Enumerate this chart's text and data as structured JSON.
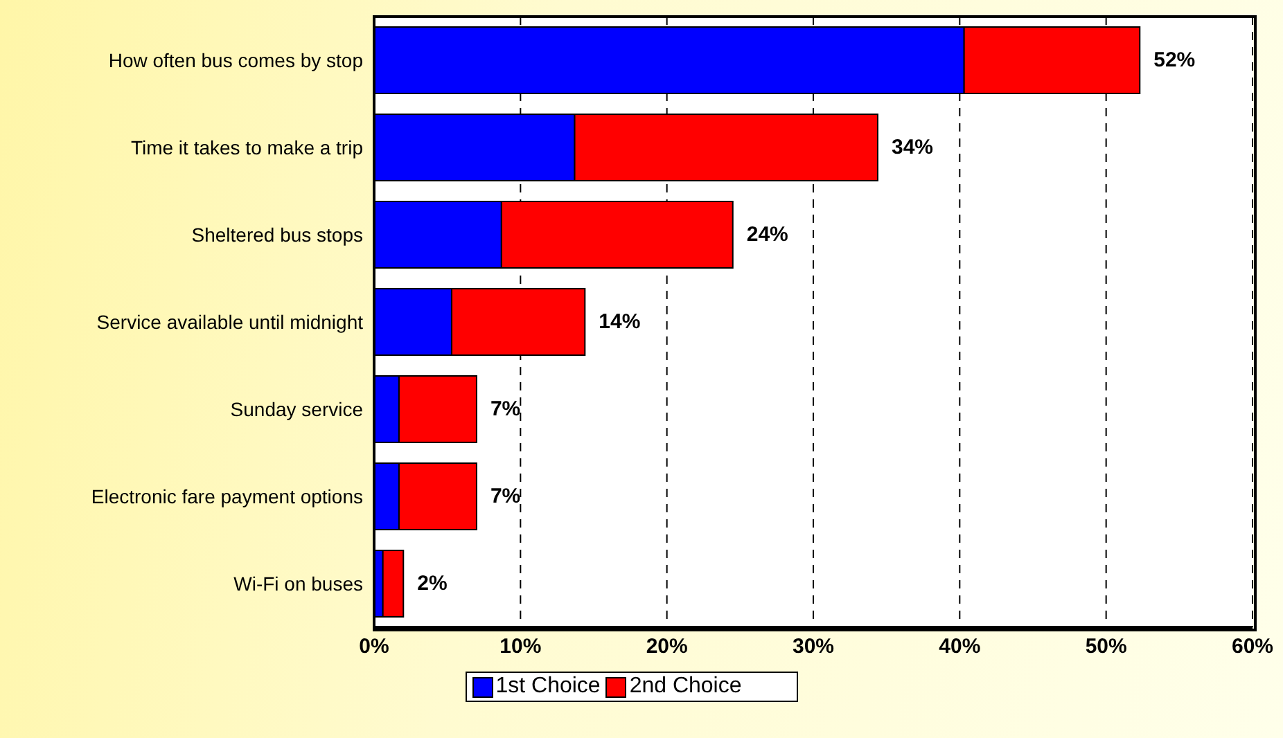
{
  "chart_data": {
    "type": "bar",
    "orientation": "horizontal",
    "stacked": true,
    "categories": [
      "How often bus comes by stop",
      "Time it takes to make a trip",
      "Sheltered bus stops",
      "Service available until midnight",
      "Sunday service",
      "Electronic fare payment options",
      "Wi-Fi on buses"
    ],
    "series": [
      {
        "name": "1st Choice",
        "color": "#0000ff",
        "values": [
          40.3,
          13.7,
          8.7,
          5.3,
          1.7,
          1.7,
          0.6
        ]
      },
      {
        "name": "2nd Choice",
        "color": "#ff0000",
        "values": [
          12.0,
          20.7,
          15.8,
          9.1,
          5.3,
          5.3,
          1.4
        ]
      }
    ],
    "totals": [
      "52%",
      "34%",
      "24%",
      "14%",
      "7%",
      "7%",
      "2%"
    ],
    "xlim": [
      0,
      60
    ],
    "xticks": [
      {
        "value": 0,
        "label": "0%"
      },
      {
        "value": 10,
        "label": "10%"
      },
      {
        "value": 20,
        "label": "20%"
      },
      {
        "value": 30,
        "label": "30%"
      },
      {
        "value": 40,
        "label": "40%"
      },
      {
        "value": 50,
        "label": "50%"
      },
      {
        "value": 60,
        "label": "60%"
      }
    ],
    "grid": "x",
    "legend": "bottom"
  }
}
